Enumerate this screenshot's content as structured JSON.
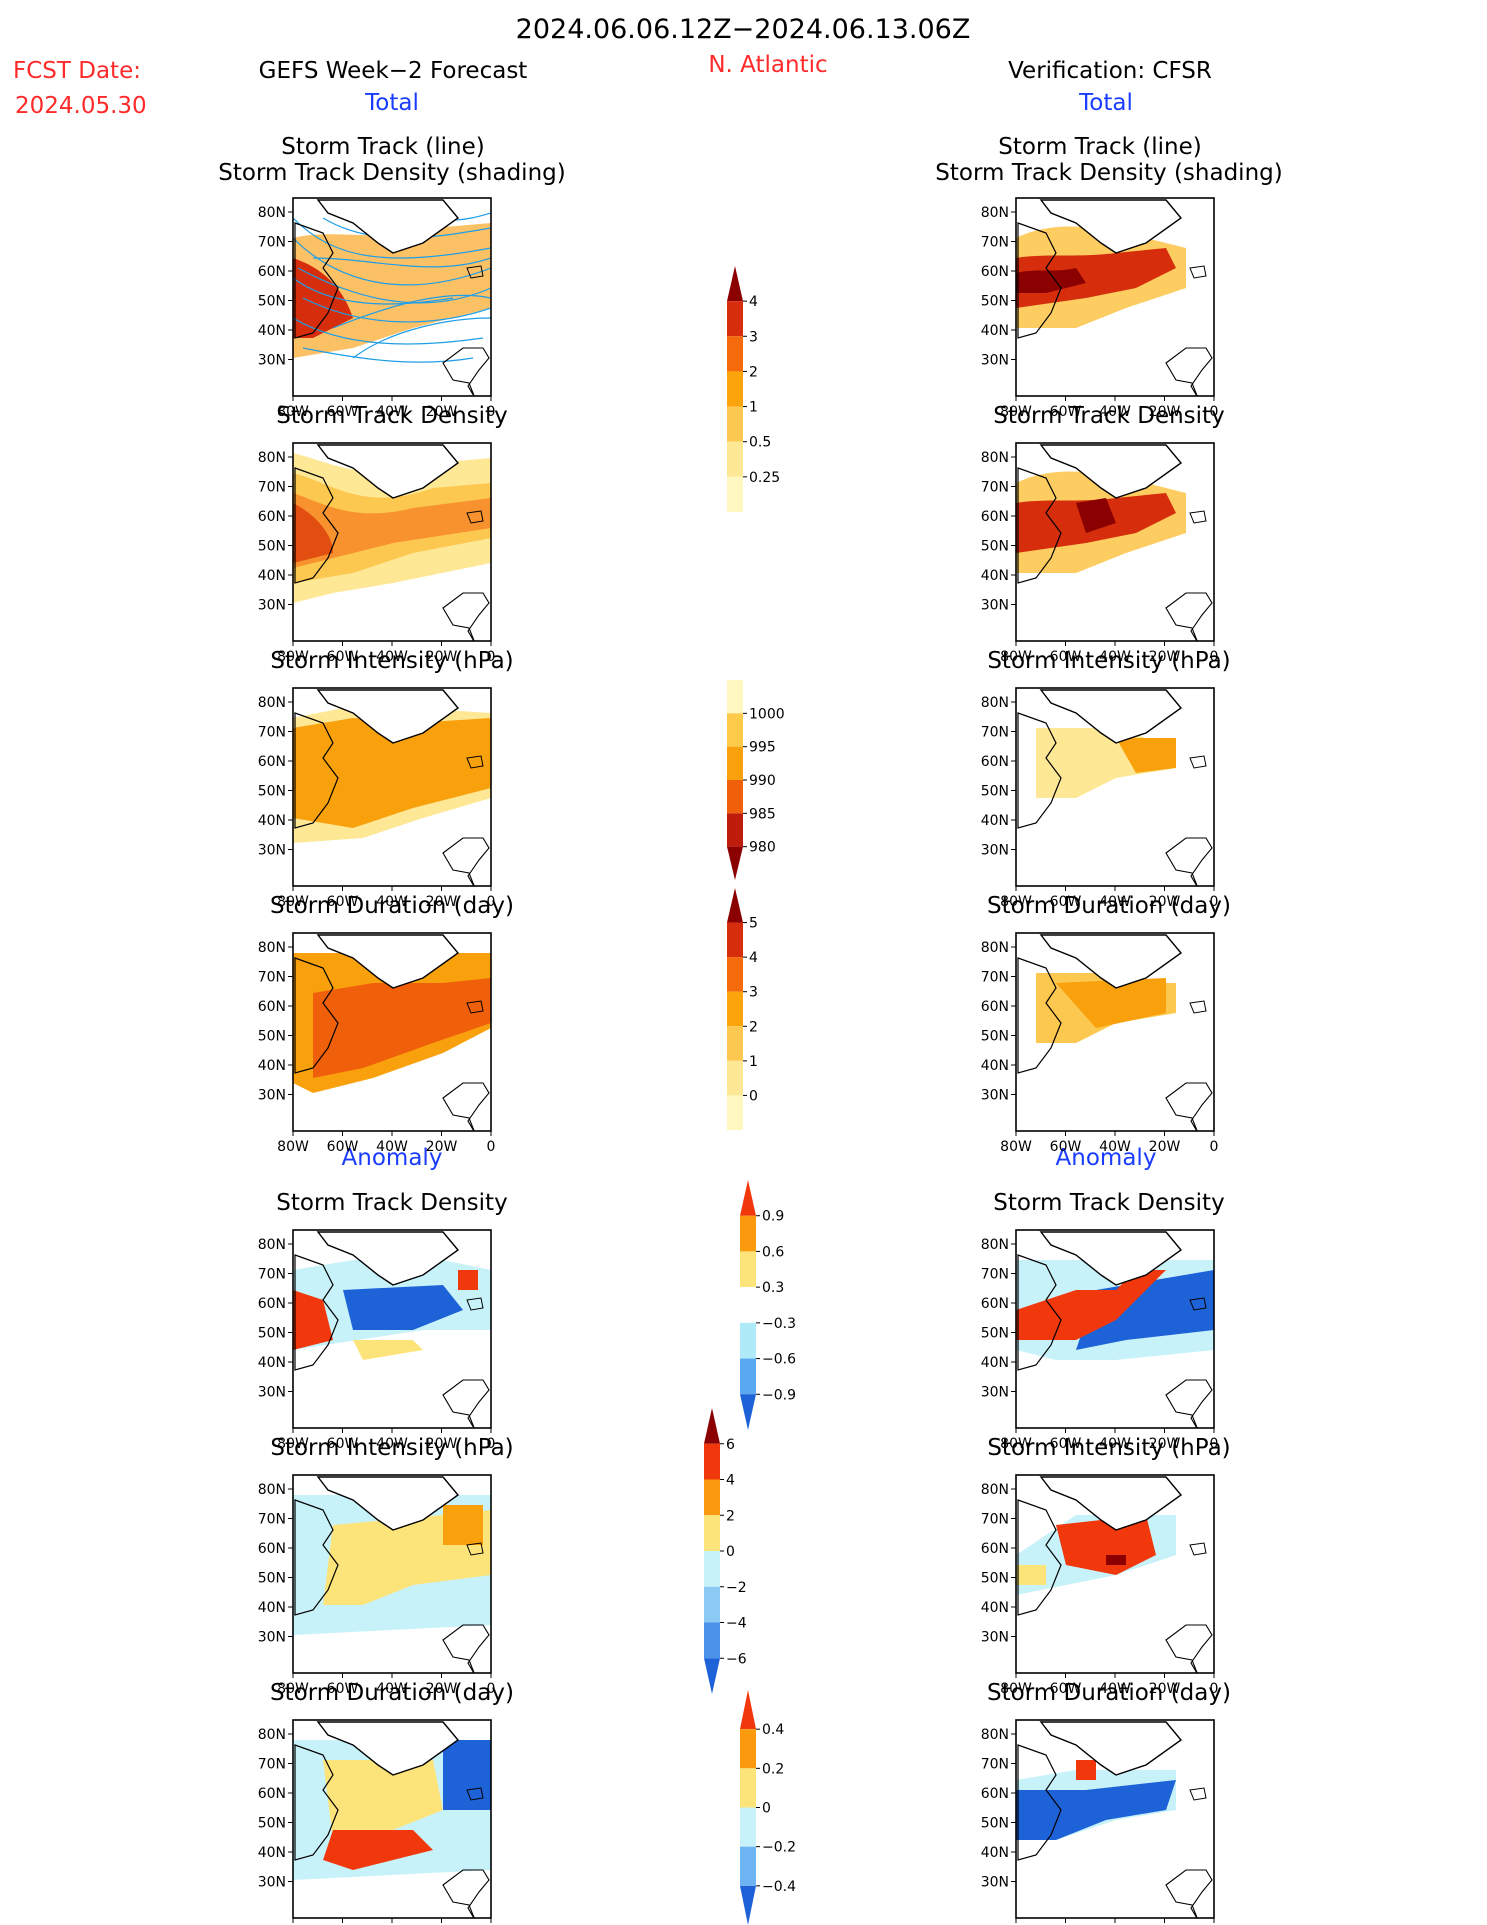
{
  "header": {
    "date_range": "2024.06.06.12Z−2024.06.13.06Z",
    "fcst_label": "FCST Date:",
    "fcst_date": "2024.05.30",
    "forecast_title": "GEFS Week−2 Forecast",
    "region": "N. Atlantic",
    "verification_title": "Verification: CFSR",
    "total_label": "Total",
    "anomaly_label": "Anomaly"
  },
  "titles": {
    "track_line": "Storm Track (line)",
    "track_density_shading": "Storm Track Density (shading)",
    "track_density": "Storm Track Density",
    "intensity": "Storm Intensity (hPa)",
    "duration": "Storm Duration (day)"
  },
  "axes": {
    "lat_labels": [
      "80N",
      "70N",
      "60N",
      "50N",
      "40N",
      "30N"
    ],
    "lon_labels": [
      "80W",
      "60W",
      "40W",
      "20W",
      "0"
    ]
  },
  "colorbars": [
    {
      "id": "density-total",
      "ticks": [
        "4",
        "3",
        "2",
        "1",
        "0.5",
        "0.25"
      ],
      "colors": [
        "#8b0000",
        "#d62e0c",
        "#f56a0a",
        "#fba40c",
        "#fdc850",
        "#fee896",
        "#fef8c0"
      ]
    },
    {
      "id": "intensity-total",
      "ticks": [
        "1000",
        "995",
        "990",
        "985",
        "980"
      ],
      "colors": [
        "#fef8c0",
        "#fdca4a",
        "#f9a00d",
        "#f0600a",
        "#c01c0c",
        "#8b0000"
      ]
    },
    {
      "id": "duration-total",
      "ticks": [
        "5",
        "4",
        "3",
        "2",
        "1",
        "0"
      ],
      "colors": [
        "#8b0000",
        "#d62e0c",
        "#f56a0a",
        "#fba40c",
        "#fdc850",
        "#fee896",
        "#fef8c0"
      ]
    },
    {
      "id": "density-anomaly",
      "ticks": [
        "0.9",
        "0.6",
        "0.3",
        "−0.3",
        "−0.6",
        "−0.9"
      ],
      "colors": [
        "#f0380c",
        "#fb9a0e",
        "#fde47a",
        "#ffffff",
        "#aeeaf8",
        "#5aa8f0",
        "#1e62d8"
      ]
    },
    {
      "id": "intensity-anomaly",
      "ticks": [
        "6",
        "4",
        "2",
        "0",
        "−2",
        "−4",
        "−6"
      ],
      "colors": [
        "#8b0000",
        "#f0380c",
        "#fb9a0e",
        "#fde47a",
        "#c8f2fa",
        "#8ccaf4",
        "#4c92ea",
        "#1e62d8"
      ]
    },
    {
      "id": "duration-anomaly",
      "ticks": [
        "0.4",
        "0.2",
        "0",
        "−0.2",
        "−0.4"
      ],
      "colors": [
        "#f0380c",
        "#fb9a0e",
        "#fde47a",
        "#c8f2fa",
        "#6cb4f2",
        "#1e62d8"
      ]
    }
  ],
  "colors": {
    "title_black": "#000000",
    "red_label": "#ff2a2a",
    "blue_label": "#1a3cff"
  }
}
